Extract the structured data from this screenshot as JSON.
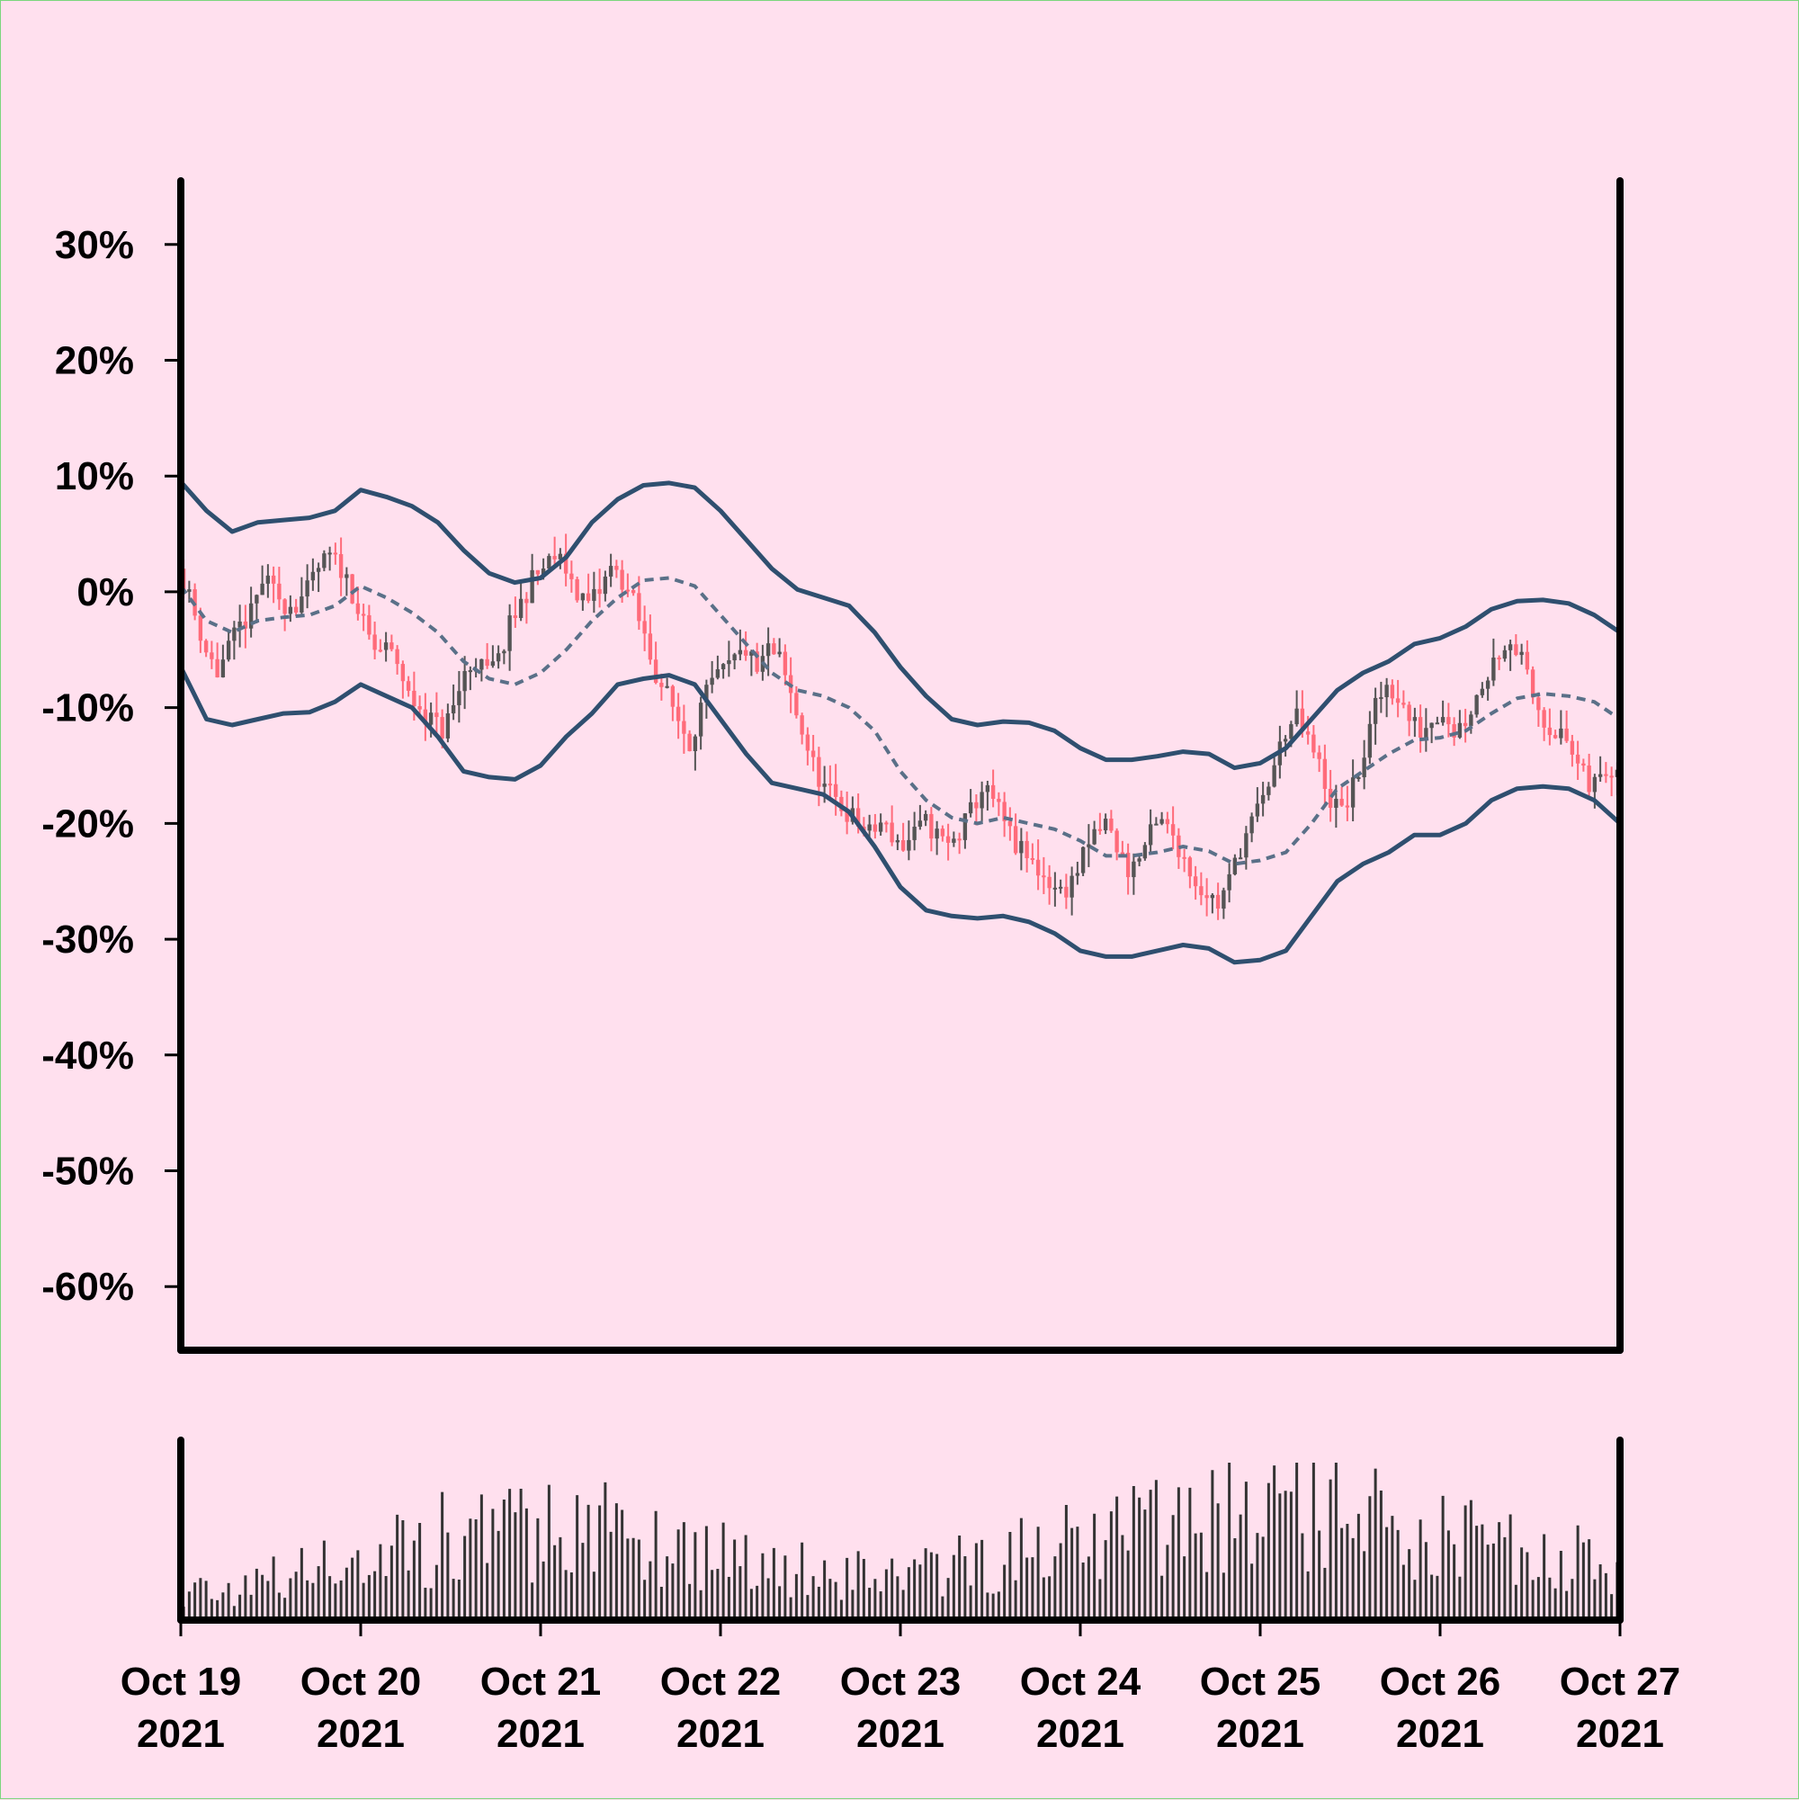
{
  "colors": {
    "background": "#ffe0ee",
    "up_candle": "#ff6b7a",
    "down_candle": "#555555",
    "band_line": "#2f4f6f",
    "mid_line": "#5a7088",
    "volume_bar": "#333333",
    "axis": "#000000"
  },
  "chart_data": [
    {
      "type": "candlestick",
      "title": "",
      "xlabel": "",
      "ylabel": "",
      "ylim": [
        -0.655,
        0.355
      ],
      "y_format": "percent",
      "yticks": [
        0.3,
        0.2,
        0.1,
        0.0,
        -0.1,
        -0.2,
        -0.3,
        -0.4,
        -0.5,
        -0.6
      ],
      "ytick_labels": [
        "30%",
        "20%",
        "10%",
        "0%",
        "-10%",
        "-20%",
        "-30%",
        "-40%",
        "-50%",
        "-60%"
      ],
      "grid": false,
      "legend": "none",
      "series": [
        {
          "kind": "close",
          "x_start": "2021-10-19 00:00",
          "x_step_hours": 1,
          "close": [
            0.01,
            -0.02,
            -0.05,
            -0.07,
            -0.05,
            -0.03,
            -0.02,
            0.01,
            0.0,
            -0.01,
            -0.01,
            0.0,
            0.02,
            0.03,
            0.02,
            0.0,
            -0.03,
            -0.05,
            -0.05,
            -0.06,
            -0.09,
            -0.1,
            -0.11,
            -0.12,
            -0.1,
            -0.07,
            -0.06,
            -0.07,
            -0.06,
            -0.03,
            -0.01,
            0.01,
            0.02,
            0.03,
            0.02,
            0.0,
            -0.01,
            0.0,
            0.02,
            0.01,
            -0.01,
            -0.04,
            -0.07,
            -0.09,
            -0.11,
            -0.13,
            -0.1,
            -0.08,
            -0.07,
            -0.06,
            -0.05,
            -0.07,
            -0.05,
            -0.06,
            -0.09,
            -0.12,
            -0.15,
            -0.17,
            -0.18,
            -0.19,
            -0.2,
            -0.21,
            -0.2,
            -0.21,
            -0.22,
            -0.21,
            -0.2,
            -0.21,
            -0.22,
            -0.21,
            -0.19,
            -0.17,
            -0.18,
            -0.2,
            -0.22,
            -0.23,
            -0.24,
            -0.25,
            -0.26,
            -0.25,
            -0.23,
            -0.21,
            -0.2,
            -0.22,
            -0.24,
            -0.23,
            -0.21,
            -0.2,
            -0.21,
            -0.23,
            -0.25,
            -0.26,
            -0.27,
            -0.25,
            -0.22,
            -0.2,
            -0.18,
            -0.15,
            -0.12,
            -0.11,
            -0.13,
            -0.15,
            -0.18,
            -0.19,
            -0.17,
            -0.14,
            -0.1,
            -0.08,
            -0.09,
            -0.11,
            -0.12,
            -0.11,
            -0.1,
            -0.12,
            -0.11,
            -0.09,
            -0.07,
            -0.05,
            -0.04,
            -0.06,
            -0.09,
            -0.11,
            -0.12,
            -0.13,
            -0.15,
            -0.17,
            -0.16,
            -0.15
          ],
          "volume_scale": "relative"
        },
        {
          "name": "",
          "kind": "band_upper",
          "values": [
            0.095,
            0.07,
            0.052,
            0.06,
            0.062,
            0.064,
            0.07,
            0.088,
            0.082,
            0.074,
            0.06,
            0.036,
            0.016,
            0.008,
            0.012,
            0.03,
            0.06,
            0.08,
            0.092,
            0.094,
            0.09,
            0.07,
            0.045,
            0.02,
            0.002,
            -0.005,
            -0.012,
            -0.035,
            -0.065,
            -0.09,
            -0.11,
            -0.115,
            -0.112,
            -0.113,
            -0.12,
            -0.135,
            -0.145,
            -0.145,
            -0.142,
            -0.138,
            -0.14,
            -0.152,
            -0.148,
            -0.135,
            -0.11,
            -0.085,
            -0.07,
            -0.06,
            -0.045,
            -0.04,
            -0.03,
            -0.015,
            -0.008,
            -0.007,
            -0.01,
            -0.02,
            -0.035
          ]
        },
        {
          "name": "",
          "kind": "band_middle",
          "values": [
            0.005,
            -0.025,
            -0.035,
            -0.025,
            -0.022,
            -0.02,
            -0.012,
            0.005,
            -0.005,
            -0.018,
            -0.035,
            -0.06,
            -0.075,
            -0.08,
            -0.07,
            -0.05,
            -0.025,
            -0.005,
            0.01,
            0.012,
            0.005,
            -0.02,
            -0.045,
            -0.07,
            -0.085,
            -0.09,
            -0.1,
            -0.12,
            -0.155,
            -0.18,
            -0.195,
            -0.2,
            -0.195,
            -0.2,
            -0.205,
            -0.215,
            -0.228,
            -0.228,
            -0.225,
            -0.22,
            -0.224,
            -0.235,
            -0.232,
            -0.225,
            -0.2,
            -0.17,
            -0.155,
            -0.14,
            -0.128,
            -0.126,
            -0.12,
            -0.105,
            -0.092,
            -0.088,
            -0.09,
            -0.095,
            -0.11
          ]
        },
        {
          "name": "",
          "kind": "band_lower",
          "values": [
            -0.065,
            -0.11,
            -0.115,
            -0.11,
            -0.105,
            -0.104,
            -0.095,
            -0.08,
            -0.09,
            -0.1,
            -0.125,
            -0.155,
            -0.16,
            -0.162,
            -0.15,
            -0.125,
            -0.105,
            -0.08,
            -0.075,
            -0.072,
            -0.08,
            -0.11,
            -0.14,
            -0.165,
            -0.17,
            -0.175,
            -0.19,
            -0.22,
            -0.255,
            -0.275,
            -0.28,
            -0.282,
            -0.28,
            -0.285,
            -0.295,
            -0.31,
            -0.315,
            -0.315,
            -0.31,
            -0.305,
            -0.308,
            -0.32,
            -0.318,
            -0.31,
            -0.28,
            -0.25,
            -0.235,
            -0.225,
            -0.21,
            -0.21,
            -0.2,
            -0.18,
            -0.17,
            -0.168,
            -0.17,
            -0.18,
            -0.2
          ]
        }
      ]
    },
    {
      "type": "bar",
      "title": "",
      "ylabel": "",
      "xticks": [
        "2021-10-19",
        "2021-10-20",
        "2021-10-21",
        "2021-10-22",
        "2021-10-23",
        "2021-10-24",
        "2021-10-25",
        "2021-10-26",
        "2021-10-27"
      ],
      "xtick_labels": [
        [
          "Oct 19",
          "2021"
        ],
        [
          "Oct 20",
          "2021"
        ],
        [
          "Oct 21",
          "2021"
        ],
        [
          "Oct 22",
          "2021"
        ],
        [
          "Oct 23",
          "2021"
        ],
        [
          "Oct 24",
          "2021"
        ],
        [
          "Oct 25",
          "2021"
        ],
        [
          "Oct 26",
          "2021"
        ],
        [
          "Oct 27",
          "2021"
        ]
      ],
      "grid": false
    }
  ]
}
